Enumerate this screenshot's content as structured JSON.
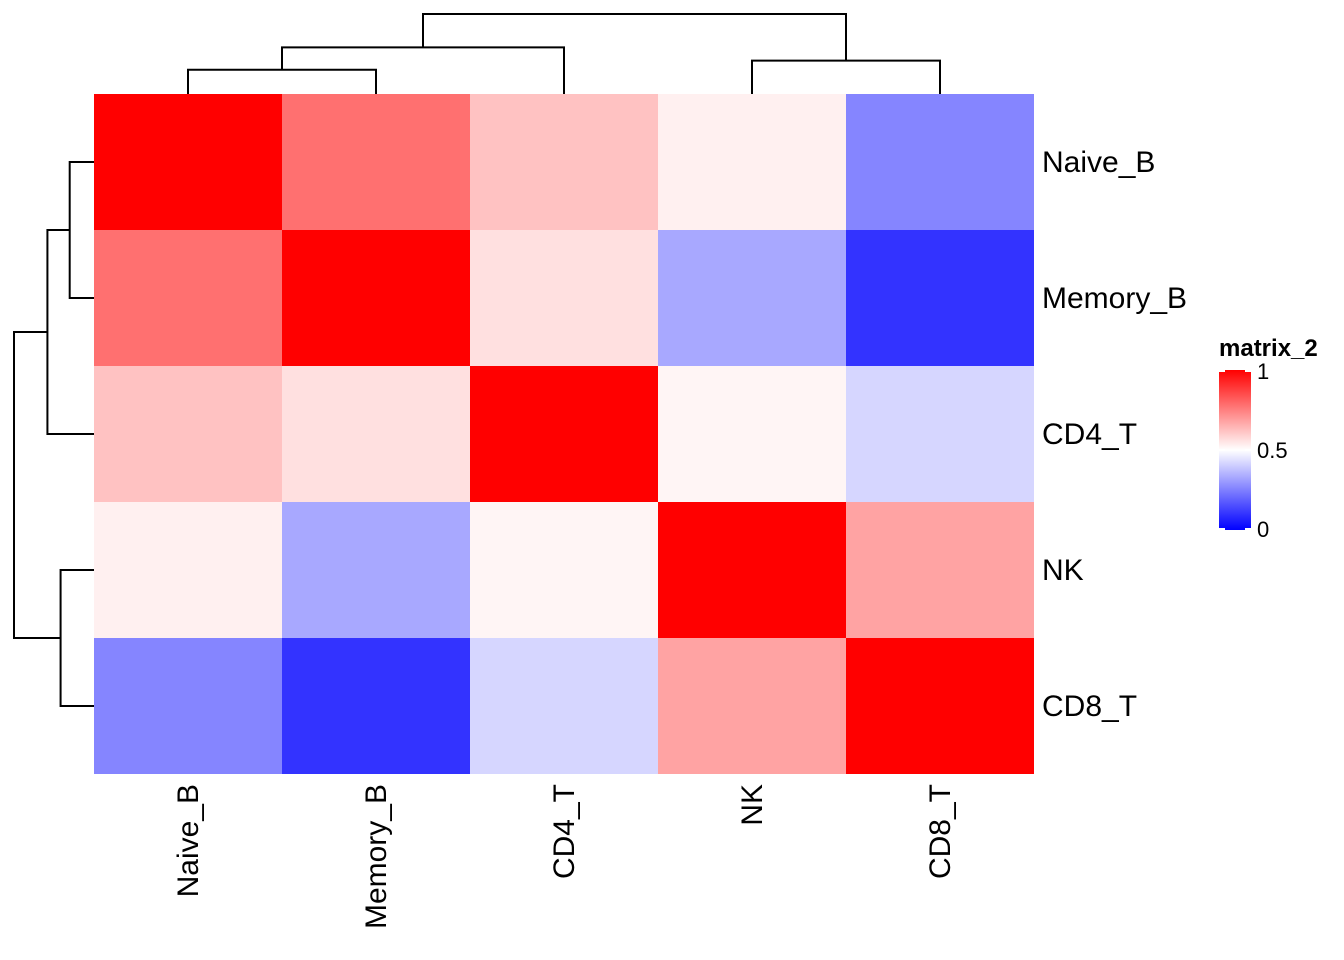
{
  "chart_data": {
    "type": "heatmap",
    "rows": [
      "Naive_B",
      "Memory_B",
      "CD4_T",
      "NK",
      "CD8_T"
    ],
    "columns": [
      "Naive_B",
      "Memory_B",
      "CD4_T",
      "NK",
      "CD8_T"
    ],
    "values": [
      [
        1.0,
        0.78,
        0.62,
        0.53,
        0.26
      ],
      [
        0.78,
        1.0,
        0.56,
        0.33,
        0.1
      ],
      [
        0.62,
        0.56,
        1.0,
        0.52,
        0.42
      ],
      [
        0.53,
        0.33,
        0.52,
        1.0,
        0.68
      ],
      [
        0.26,
        0.1,
        0.42,
        0.68,
        1.0
      ]
    ],
    "legend": {
      "title": "matrix_2",
      "ticks": [
        1,
        0.5,
        0
      ],
      "tick_labels": [
        "1",
        "0.5",
        "0"
      ],
      "range": [
        0,
        1
      ]
    },
    "color_scale": {
      "low": "#0000FF",
      "mid": "#FFFFFF",
      "high": "#FF0000",
      "midpoint": 0.5
    },
    "row_dendrogram": {
      "merges": [
        [
          "Naive_B",
          "Memory_B"
        ],
        [
          "Naive_B+Memory_B",
          "CD4_T"
        ],
        [
          "NK",
          "CD8_T"
        ],
        [
          "Naive_B+Memory_B+CD4_T",
          "NK+CD8_T"
        ]
      ],
      "heights": [
        0.24,
        0.46,
        0.33,
        0.79
      ]
    },
    "column_dendrogram": {
      "merges": [
        [
          "Naive_B",
          "Memory_B"
        ],
        [
          "Naive_B+Memory_B",
          "CD4_T"
        ],
        [
          "NK",
          "CD8_T"
        ],
        [
          "Naive_B+Memory_B+CD4_T",
          "NK+CD8_T"
        ]
      ],
      "heights": [
        0.24,
        0.46,
        0.33,
        0.79
      ]
    }
  }
}
